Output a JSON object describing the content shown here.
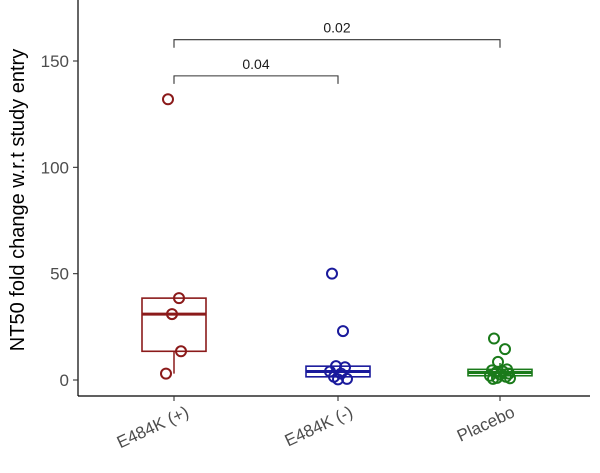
{
  "chart_data": {
    "type": "box",
    "title": "",
    "xlabel": "",
    "ylabel": "NT50 fold change w.r.t study entry",
    "ylim": [
      -8,
      177
    ],
    "yticks": [
      0,
      50,
      100,
      150
    ],
    "grid": false,
    "legend": "none",
    "categories": [
      "E484K (+)",
      "E484K (-)",
      "Placebo"
    ],
    "groups": [
      {
        "name": "E484K (+)",
        "color": "#8b1a1a",
        "box": {
          "q1": 13.5,
          "median": 31,
          "q3": 38.5,
          "whisker_low": 3,
          "whisker_high": 38.5
        },
        "points": [
          132,
          38.5,
          31,
          13.5,
          3
        ]
      },
      {
        "name": "E484K (-)",
        "color": "#1a1a9c",
        "box": {
          "q1": 1.5,
          "median": 4,
          "q3": 6.5,
          "whisker_low": 0.3,
          "whisker_high": 6.5
        },
        "points": [
          50,
          23,
          6.5,
          6,
          4,
          3,
          1.5,
          0.5,
          0.3
        ]
      },
      {
        "name": "Placebo",
        "color": "#1a7a1a",
        "box": {
          "q1": 2,
          "median": 3.5,
          "q3": 5,
          "whisker_low": 0.5,
          "whisker_high": 8
        },
        "points": [
          19.5,
          14.5,
          8.5,
          5,
          4.5,
          4,
          3.5,
          3,
          2.5,
          2,
          1.5,
          1,
          0.8,
          0.5
        ]
      }
    ],
    "comparisons": [
      {
        "from": "E484K (+)",
        "to": "E484K (-)",
        "label": "0.04",
        "y": 143
      },
      {
        "from": "E484K (+)",
        "to": "Placebo",
        "label": "0.02",
        "y": 160
      }
    ]
  }
}
